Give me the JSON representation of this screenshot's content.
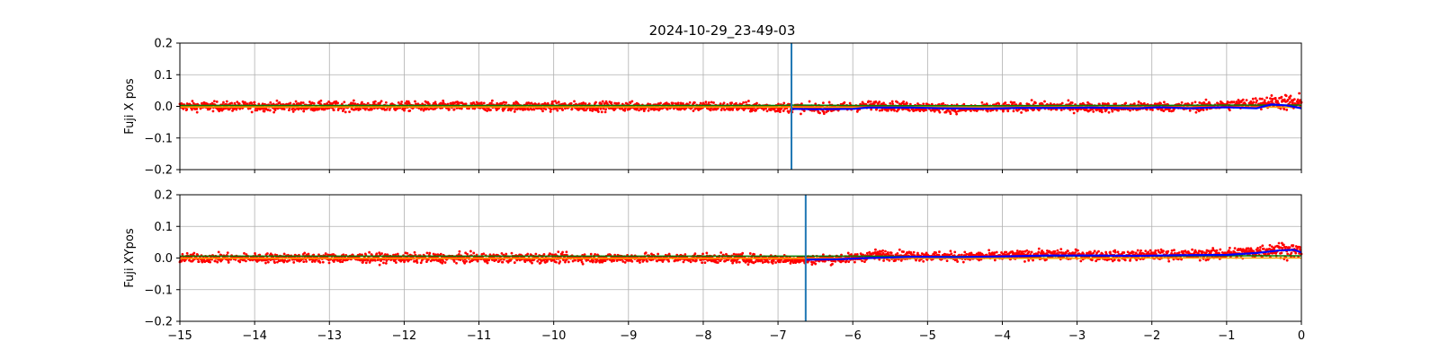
{
  "figure": {
    "title": "2024-10-29_23-49-03"
  },
  "chart_data": [
    {
      "type": "scatter",
      "ylabel": "Fuji X pos",
      "xlim": [
        -15,
        0
      ],
      "ylim": [
        -0.2,
        0.2
      ],
      "grid": true,
      "x_ticks": [
        -15,
        -14,
        -13,
        -12,
        -11,
        -10,
        -9,
        -8,
        -7,
        -6,
        -5,
        -4,
        -3,
        -2,
        -1,
        0
      ],
      "y_ticks": [
        -0.2,
        -0.1,
        0.0,
        0.1,
        0.2
      ],
      "y_tick_labels": [
        "−0.2",
        "−0.1",
        "0.0",
        "0.1",
        "0.2"
      ],
      "x_tick_labels_visible": false,
      "vline": {
        "x": -6.82,
        "color": "#1f77b4"
      },
      "series": [
        {
          "kind": "scatter",
          "color": "#ff0000",
          "x": [
            -15,
            -14,
            -13,
            -12,
            -11,
            -10,
            -9,
            -8,
            -7,
            -6.5,
            -6,
            -5.7,
            -5,
            -4.5,
            -4,
            -3.5,
            -3,
            -2.5,
            -2,
            -1.5,
            -1,
            -0.6,
            -0.3,
            0
          ],
          "y": [
            0.0,
            0.0,
            0.0,
            0.0,
            0.0,
            0.0,
            0.0,
            0.0,
            -0.003,
            -0.006,
            -0.002,
            0.003,
            -0.003,
            -0.008,
            -0.003,
            0.0,
            -0.002,
            -0.004,
            0.0,
            -0.002,
            0.004,
            0.01,
            0.015,
            0.005
          ],
          "spread": [
            0.013,
            0.013,
            0.013,
            0.013,
            0.013,
            0.013,
            0.013,
            0.013,
            0.013,
            0.013,
            0.013,
            0.013,
            0.013,
            0.013,
            0.013,
            0.013,
            0.013,
            0.013,
            0.013,
            0.013,
            0.014,
            0.016,
            0.02,
            0.03
          ]
        },
        {
          "kind": "line",
          "color": "#008000",
          "x": [
            -15,
            -10,
            -7,
            -6.8,
            -6,
            -5,
            -4,
            -3,
            -2,
            -1,
            0
          ],
          "y": [
            0.003,
            0.003,
            0.003,
            0.004,
            0.003,
            0.002,
            0.002,
            0.003,
            0.003,
            0.004,
            0.004
          ]
        },
        {
          "kind": "line",
          "color": "#ffa500",
          "x": [
            -15,
            -10,
            -7,
            -6.8,
            -6,
            -5,
            -4,
            -3,
            -2,
            -1,
            0
          ],
          "y": [
            -0.002,
            -0.002,
            -0.002,
            -0.002,
            -0.003,
            -0.002,
            -0.003,
            -0.002,
            -0.003,
            -0.002,
            -0.003
          ]
        },
        {
          "kind": "line",
          "color": "#0000ff",
          "x": [
            -6.82,
            -6.5,
            -6.0,
            -5.8,
            -5.2,
            -4.8,
            -4.2,
            -3.8,
            -3.2,
            -2.8,
            -2.2,
            -1.9,
            -1.5,
            -1.2,
            -1.0,
            -0.6,
            -0.4,
            -0.2,
            0
          ],
          "y": [
            -0.008,
            -0.009,
            -0.008,
            -0.004,
            -0.004,
            -0.006,
            -0.007,
            -0.005,
            -0.005,
            -0.004,
            -0.006,
            -0.003,
            -0.006,
            -0.004,
            -0.003,
            -0.006,
            0.006,
            0.003,
            -0.006
          ]
        }
      ]
    },
    {
      "type": "scatter",
      "ylabel": "Fuji XYpos",
      "xlim": [
        -15,
        0
      ],
      "ylim": [
        -0.2,
        0.2
      ],
      "grid": true,
      "x_ticks": [
        -15,
        -14,
        -13,
        -12,
        -11,
        -10,
        -9,
        -8,
        -7,
        -6,
        -5,
        -4,
        -3,
        -2,
        -1,
        0
      ],
      "x_tick_labels": [
        "−15",
        "−14",
        "−13",
        "−12",
        "−11",
        "−10",
        "−9",
        "−8",
        "−7",
        "−6",
        "−5",
        "−4",
        "−3",
        "−2",
        "−1",
        "0"
      ],
      "y_ticks": [
        -0.2,
        -0.1,
        0.0,
        0.1,
        0.2
      ],
      "y_tick_labels": [
        "−0.2",
        "−0.1",
        "0.0",
        "0.1",
        "0.2"
      ],
      "vline": {
        "x": -6.63,
        "color": "#1f77b4"
      },
      "series": [
        {
          "kind": "scatter",
          "color": "#ff0000",
          "x": [
            -15,
            -14,
            -13,
            -12,
            -11,
            -10,
            -9,
            -8,
            -7,
            -6.6,
            -6,
            -5.7,
            -5,
            -4.5,
            -4,
            -3.5,
            -3,
            -2.5,
            -2,
            -1.5,
            -1,
            -0.6,
            -0.3,
            0
          ],
          "y": [
            0.0,
            0.0,
            0.0,
            0.0,
            0.0,
            0.0,
            0.0,
            0.0,
            -0.003,
            -0.005,
            0.0,
            0.01,
            0.006,
            0.004,
            0.006,
            0.01,
            0.01,
            0.006,
            0.01,
            0.01,
            0.013,
            0.02,
            0.028,
            0.02
          ],
          "spread": [
            0.013,
            0.013,
            0.013,
            0.013,
            0.013,
            0.013,
            0.013,
            0.013,
            0.013,
            0.013,
            0.013,
            0.014,
            0.013,
            0.013,
            0.013,
            0.014,
            0.014,
            0.014,
            0.014,
            0.014,
            0.016,
            0.018,
            0.022,
            0.022
          ]
        },
        {
          "kind": "line",
          "color": "#008000",
          "x": [
            -15,
            -10,
            -7,
            -6.63,
            -6,
            -5,
            -4,
            -3,
            -2,
            -1,
            0
          ],
          "y": [
            0.006,
            0.006,
            0.006,
            0.006,
            0.006,
            0.005,
            0.005,
            0.006,
            0.006,
            0.007,
            0.007
          ]
        },
        {
          "kind": "line",
          "color": "#ffa500",
          "x": [
            -15,
            -10,
            -7,
            -6.63,
            -6,
            -5,
            -4,
            -3,
            -2,
            -1,
            0
          ],
          "y": [
            -0.001,
            -0.001,
            -0.001,
            -0.001,
            -0.001,
            -0.001,
            -0.001,
            -0.001,
            0.0,
            0.0,
            0.0
          ]
        },
        {
          "kind": "line",
          "color": "#0000ff",
          "x": [
            -6.63,
            -6.2,
            -5.8,
            -5.2,
            -4.6,
            -4.0,
            -3.4,
            -2.8,
            -2.2,
            -1.6,
            -1.0,
            -0.6,
            -0.3,
            -0.1,
            0
          ],
          "y": [
            -0.005,
            -0.004,
            0.0,
            0.004,
            0.003,
            0.005,
            0.008,
            0.008,
            0.007,
            0.009,
            0.01,
            0.016,
            0.024,
            0.026,
            0.018
          ]
        }
      ]
    }
  ]
}
